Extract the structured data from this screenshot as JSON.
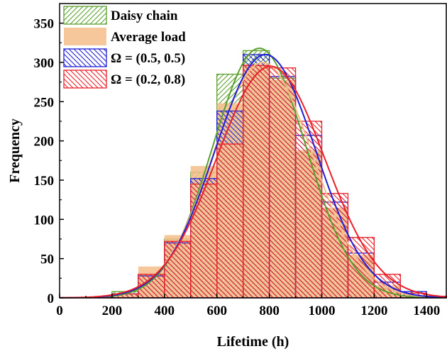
{
  "chart_data": {
    "type": "bar",
    "xlabel": "Lifetime (h)",
    "ylabel": "Frequency",
    "xlim": [
      0,
      1475
    ],
    "ylim": [
      0,
      375
    ],
    "xticks": [
      0,
      200,
      400,
      600,
      800,
      1000,
      1200,
      1400
    ],
    "yticks": [
      0,
      50,
      100,
      150,
      200,
      250,
      300,
      350
    ],
    "bin_width": 100,
    "bin_starts": [
      0,
      100,
      200,
      300,
      400,
      500,
      600,
      700,
      800,
      900,
      1000,
      1100,
      1200,
      1300,
      1400
    ],
    "legend_position": "top-left",
    "grid": false,
    "series": [
      {
        "name": "Daisy chain",
        "color": "#5aa02c",
        "pattern": "hatch-up",
        "values": [
          0,
          0,
          8,
          30,
          75,
          160,
          285,
          315,
          280,
          185,
          90,
          45,
          12,
          2,
          1
        ],
        "fit": {
          "mean": 762,
          "sd": 178,
          "peak": 318
        }
      },
      {
        "name": "Average load",
        "color": "#f5bd8a",
        "pattern": "solid",
        "values": [
          0,
          1,
          4,
          40,
          80,
          168,
          248,
          298,
          278,
          188,
          115,
          55,
          16,
          3,
          1
        ],
        "fit": {
          "mean": 775,
          "sd": 190,
          "peak": 300
        }
      },
      {
        "name": "Ω = (0.5, 0.5)",
        "color": "#1f1fd6",
        "pattern": "hatch-down",
        "values": [
          0,
          1,
          5,
          28,
          70,
          152,
          238,
          310,
          282,
          207,
          122,
          57,
          20,
          8,
          2
        ],
        "fit": {
          "mean": 785,
          "sd": 192,
          "peak": 310
        }
      },
      {
        "name": "Ω = (0.2, 0.8)",
        "color": "#e8202a",
        "pattern": "hatch-down",
        "values": [
          0,
          1,
          5,
          30,
          72,
          145,
          196,
          296,
          293,
          225,
          133,
          77,
          30,
          6,
          2
        ],
        "fit": {
          "mean": 805,
          "sd": 205,
          "peak": 295
        }
      }
    ]
  }
}
